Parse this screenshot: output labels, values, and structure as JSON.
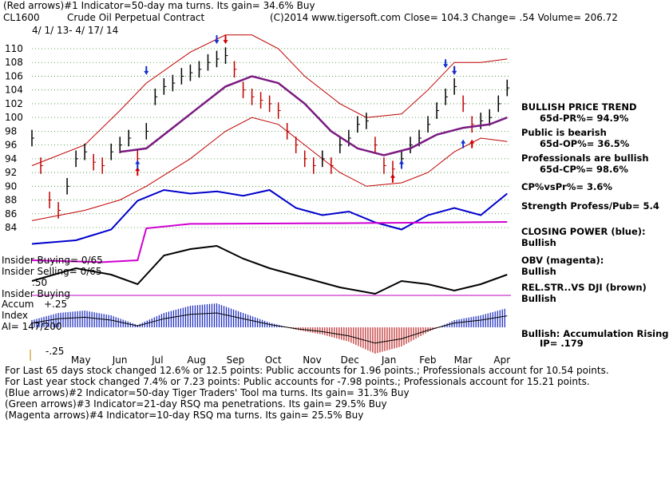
{
  "header": {
    "line1": "(Red arrows)#1 Indicator=50-day ma turns. Its gain= 34.6% Buy",
    "ticker": "CL1600",
    "name": "Crude Oil Perpetual Contract",
    "copyright": "(C)2014 www.tigersoft.com",
    "quote": "Close=  104.3  Change= .54 Volume= 206.72",
    "dates": "4/ 1/ 13-  4/ 17/ 14"
  },
  "panel_labels": {
    "insider_buying_top": "Insider Buying= 0/65",
    "insider_selling": "Insider Selling= 0/65",
    "insider_buying_2": "Insider Buying",
    "accum": "Accum",
    "index": "Index",
    "ai": "AI= 147/200",
    "tick_50": ".50",
    "tick_25": "+.25",
    "tick_m25": "-.25"
  },
  "side_panel": {
    "bullish_price_trend": "BULLISH PRICE TREND",
    "pr": "65d-PR%= 94.9%",
    "public_bearish": "Public is bearish",
    "op": "65d-OP%= 36.5%",
    "pros_bullish": "Professionals are bullish",
    "cp": "65d-CP%= 98.6%",
    "cp_vs_pr": "CP%vsPr%=  3.6%",
    "strength": "Strength Profess/Pub= 5.4",
    "closing_power": "CLOSING POWER (blue):",
    "closing_power_val": "Bullish",
    "obv": "OBV (magenta):",
    "obv_val": "Bullish",
    "rel_str": "REL.STR..VS DJI (brown)",
    "rel_str_val": "Bullish",
    "accum_rising": "Bullish: Accumulation Rising",
    "ip": "IP=  .179"
  },
  "footer": {
    "line1": "For Last 65 days stock changed  12.6% or  12.5 points:  Public accounts for  1.96 points.;  Professionals account for  10.54 points.",
    "line2": "For Last year stock changed  7.4% or  7.23 points:  Public accounts for -7.98 points.;  Professionals account for  15.21 points.",
    "line3": "(Blue arrows)#2 Indicator=50-day Tiger Traders' Tool ma turns. Its gain= 31.3% Buy",
    "line4": "(Green arrows)#3 Indicator=21-day RSQ ma penetrations. Its gain= 29.5% Buy",
    "line5": "(Magenta arrows)#4 Indicator=10-day RSQ ma turns. Its gain= 25.5% Buy"
  },
  "chart_data": {
    "type": "line",
    "series_name": "CL1600",
    "x_tick_labels": [
      "May",
      "Jun",
      "Jul",
      "Aug",
      "Sep",
      "Oct",
      "Nov",
      "Dec",
      "Jan",
      "Feb",
      "Mar",
      "Apr"
    ],
    "y_tick_labels": [
      "110",
      "108",
      "106",
      "104",
      "102",
      "100",
      "98",
      "96",
      "94",
      "92",
      "90",
      "88",
      "86",
      "84"
    ],
    "ylim": [
      84,
      110
    ],
    "grid": "horizontal dotted",
    "price": {
      "x": [
        "2013-04-01",
        "2013-04-08",
        "2013-04-15",
        "2013-04-22",
        "2013-04-29",
        "2013-05-06",
        "2013-05-13",
        "2013-05-20",
        "2013-05-27",
        "2013-06-03",
        "2013-06-10",
        "2013-06-17",
        "2013-06-24",
        "2013-07-01",
        "2013-07-08",
        "2013-07-15",
        "2013-07-22",
        "2013-07-29",
        "2013-08-05",
        "2013-08-12",
        "2013-08-19",
        "2013-08-26",
        "2013-09-02",
        "2013-09-09",
        "2013-09-16",
        "2013-09-23",
        "2013-09-30",
        "2013-10-07",
        "2013-10-14",
        "2013-10-21",
        "2013-10-28",
        "2013-11-04",
        "2013-11-11",
        "2013-11-18",
        "2013-11-25",
        "2013-12-02",
        "2013-12-09",
        "2013-12-16",
        "2013-12-23",
        "2013-12-30",
        "2014-01-06",
        "2014-01-13",
        "2014-01-20",
        "2014-01-27",
        "2014-02-03",
        "2014-02-10",
        "2014-02-17",
        "2014-02-24",
        "2014-03-03",
        "2014-03-10",
        "2014-03-17",
        "2014-03-24",
        "2014-03-31",
        "2014-04-07",
        "2014-04-14"
      ],
      "y": [
        97,
        93,
        88,
        86.5,
        90,
        94,
        95,
        93.5,
        93,
        95,
        96,
        97,
        94,
        98,
        103,
        104.5,
        105,
        106,
        106.5,
        107,
        108,
        108.5,
        109,
        107,
        104,
        103,
        102.5,
        102,
        101,
        98,
        96,
        94,
        93,
        94,
        93,
        96,
        97,
        99,
        99.5,
        96,
        93,
        92.5,
        94,
        96,
        97,
        99,
        101,
        103,
        104.5,
        102,
        99,
        99.5,
        100,
        102,
        104.3
      ]
    },
    "ma50": {
      "x": [
        "2013-06-10",
        "2013-07-01",
        "2013-07-22",
        "2013-08-12",
        "2013-09-02",
        "2013-09-23",
        "2013-10-14",
        "2013-11-04",
        "2013-11-25",
        "2013-12-16",
        "2014-01-06",
        "2014-01-27",
        "2014-02-17",
        "2014-03-10",
        "2014-03-31",
        "2014-04-14"
      ],
      "y": [
        95,
        95.5,
        98.5,
        101.5,
        104.5,
        106,
        105,
        102,
        98,
        95.5,
        94.5,
        95.5,
        97.5,
        98.5,
        99,
        100
      ]
    },
    "upper_band": {
      "x": [
        "2013-04-01",
        "2013-05-13",
        "2013-06-10",
        "2013-07-01",
        "2013-08-05",
        "2013-09-02",
        "2013-09-23",
        "2013-10-14",
        "2013-11-04",
        "2013-12-02",
        "2013-12-23",
        "2014-01-20",
        "2014-02-10",
        "2014-03-03",
        "2014-03-24",
        "2014-04-14"
      ],
      "y": [
        93,
        96,
        101,
        105,
        109.5,
        112,
        112,
        110,
        106,
        102,
        100,
        100.5,
        104,
        108,
        108,
        108.5
      ]
    },
    "lower_band": {
      "x": [
        "2013-04-01",
        "2013-05-13",
        "2013-06-10",
        "2013-07-01",
        "2013-08-05",
        "2013-09-02",
        "2013-09-23",
        "2013-10-14",
        "2013-11-04",
        "2013-12-02",
        "2013-12-23",
        "2014-01-20",
        "2014-02-10",
        "2014-03-03",
        "2014-03-24",
        "2014-04-14"
      ],
      "y": [
        85,
        86.5,
        88,
        90,
        94,
        98,
        100,
        99,
        96,
        92,
        90,
        90.5,
        92,
        95,
        97,
        96.5
      ]
    },
    "signals": [
      {
        "date": "2013-06-24",
        "color": "#d00000",
        "dir": "up",
        "y": 92
      },
      {
        "date": "2013-06-24",
        "color": "#1030d0",
        "dir": "up",
        "y": 93
      },
      {
        "date": "2013-07-01",
        "color": "#1030d0",
        "dir": "down",
        "y": 107
      },
      {
        "date": "2013-08-26",
        "color": "#1030d0",
        "dir": "down",
        "y": 111.5
      },
      {
        "date": "2013-09-02",
        "color": "#d00000",
        "dir": "down",
        "y": 111.5
      },
      {
        "date": "2014-01-13",
        "color": "#d00000",
        "dir": "up",
        "y": 91
      },
      {
        "date": "2014-01-20",
        "color": "#1030d0",
        "dir": "up",
        "y": 93
      },
      {
        "date": "2014-02-24",
        "color": "#1030d0",
        "dir": "down",
        "y": 108
      },
      {
        "date": "2014-03-03",
        "color": "#d00000",
        "dir": "down",
        "y": 107
      },
      {
        "date": "2014-03-03",
        "color": "#1030d0",
        "dir": "down",
        "y": 107
      },
      {
        "date": "2014-03-10",
        "color": "#1030d0",
        "dir": "up",
        "y": 96
      },
      {
        "date": "2014-03-17",
        "color": "#d00000",
        "dir": "up",
        "y": 96
      }
    ],
    "closing_power": {
      "x": [
        "2013-04-01",
        "2013-05-06",
        "2013-06-03",
        "2013-06-24",
        "2013-07-15",
        "2013-08-05",
        "2013-08-26",
        "2013-09-16",
        "2013-10-07",
        "2013-10-28",
        "2013-11-18",
        "2013-12-09",
        "2013-12-30",
        "2014-01-20",
        "2014-02-10",
        "2014-03-03",
        "2014-03-24",
        "2014-04-14"
      ],
      "y": [
        0.05,
        0.1,
        0.25,
        0.65,
        0.8,
        0.75,
        0.78,
        0.72,
        0.8,
        0.55,
        0.45,
        0.5,
        0.35,
        0.25,
        0.45,
        0.55,
        0.45,
        0.75
      ]
    },
    "obv": {
      "x": [
        "2013-04-01",
        "2013-05-27",
        "2013-06-24",
        "2013-07-01",
        "2013-08-05",
        "2013-12-02",
        "2014-04-14"
      ],
      "y": [
        0.05,
        0.02,
        0.05,
        0.55,
        0.62,
        0.63,
        0.65
      ]
    },
    "rel_strength": {
      "x": [
        "2013-04-01",
        "2013-05-06",
        "2013-06-03",
        "2013-06-24",
        "2013-07-15",
        "2013-08-05",
        "2013-08-26",
        "2013-09-16",
        "2013-10-07",
        "2013-11-04",
        "2013-12-02",
        "2013-12-30",
        "2014-01-20",
        "2014-02-10",
        "2014-03-03",
        "2014-03-24",
        "2014-04-14"
      ],
      "y": [
        0.35,
        0.55,
        0.45,
        0.3,
        0.75,
        0.85,
        0.9,
        0.7,
        0.55,
        0.4,
        0.25,
        0.15,
        0.35,
        0.3,
        0.2,
        0.3,
        0.45
      ]
    },
    "accum_index": {
      "x": [
        "2013-04-01",
        "2013-04-22",
        "2013-05-13",
        "2013-06-03",
        "2013-06-24",
        "2013-07-15",
        "2013-08-05",
        "2013-08-26",
        "2013-09-16",
        "2013-10-07",
        "2013-10-28",
        "2013-11-18",
        "2013-12-09",
        "2013-12-30",
        "2014-01-20",
        "2014-02-10",
        "2014-03-03",
        "2014-03-24",
        "2014-04-14"
      ],
      "y": [
        0.15,
        0.3,
        0.35,
        0.25,
        0.05,
        0.3,
        0.45,
        0.5,
        0.3,
        0.1,
        -0.05,
        -0.15,
        -0.3,
        -0.55,
        -0.4,
        -0.1,
        0.15,
        0.25,
        0.4
      ]
    }
  }
}
